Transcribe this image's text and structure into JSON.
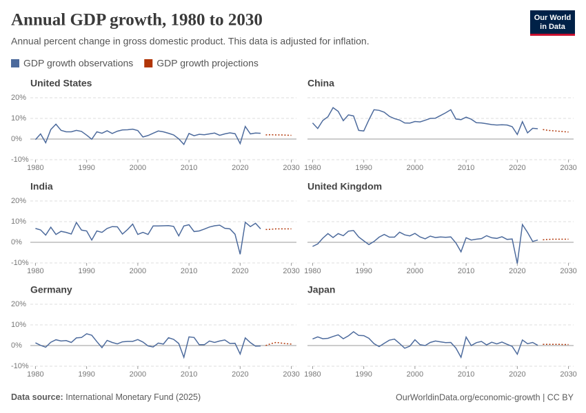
{
  "header": {
    "title": "Annual GDP growth, 1980 to 2030",
    "subtitle": "Annual percent change in gross domestic product. This data is adjusted for inflation.",
    "logo": [
      "Our World",
      "in Data"
    ]
  },
  "chart_data": [
    {
      "type": "line",
      "title": "United States",
      "x": [
        1980,
        1981,
        1982,
        1983,
        1984,
        1985,
        1986,
        1987,
        1988,
        1989,
        1990,
        1991,
        1992,
        1993,
        1994,
        1995,
        1996,
        1997,
        1998,
        1999,
        2000,
        2001,
        2002,
        2003,
        2004,
        2005,
        2006,
        2007,
        2008,
        2009,
        2010,
        2011,
        2012,
        2013,
        2014,
        2015,
        2016,
        2017,
        2018,
        2019,
        2020,
        2021,
        2022,
        2023,
        2024,
        2025,
        2026,
        2027,
        2028,
        2029,
        2030
      ],
      "xlim": [
        1979,
        2031
      ],
      "xticks": [
        1980,
        1990,
        2000,
        2010,
        2020,
        2030
      ],
      "ylim": [
        -10,
        20
      ],
      "yticks": [
        {
          "value": -10,
          "label": "-10%"
        },
        {
          "value": 0,
          "label": "0%"
        },
        {
          "value": 10,
          "label": "10%"
        },
        {
          "value": 20,
          "label": "20%"
        }
      ],
      "grid": true,
      "series": [
        {
          "name": "GDP growth observations",
          "color": "#4c6a9c",
          "values": [
            -0.3,
            2.5,
            -1.8,
            4.6,
            7.2,
            4.2,
            3.5,
            3.5,
            4.2,
            3.7,
            1.9,
            -0.1,
            3.5,
            2.8,
            4.0,
            2.7,
            3.8,
            4.4,
            4.5,
            4.8,
            4.1,
            1.0,
            1.7,
            2.8,
            3.9,
            3.5,
            2.8,
            2.0,
            0.1,
            -2.6,
            2.7,
            1.6,
            2.3,
            2.1,
            2.5,
            2.9,
            1.8,
            2.5,
            3.0,
            2.6,
            -2.2,
            6.1,
            2.5,
            2.9,
            2.8,
            null,
            null,
            null,
            null,
            null,
            null
          ]
        },
        {
          "name": "GDP growth projections",
          "color": "#b13507",
          "dashed": true,
          "values": [
            null,
            null,
            null,
            null,
            null,
            null,
            null,
            null,
            null,
            null,
            null,
            null,
            null,
            null,
            null,
            null,
            null,
            null,
            null,
            null,
            null,
            null,
            null,
            null,
            null,
            null,
            null,
            null,
            null,
            null,
            null,
            null,
            null,
            null,
            null,
            null,
            null,
            null,
            null,
            null,
            null,
            null,
            null,
            null,
            null,
            2.0,
            2.1,
            2.0,
            2.0,
            1.9,
            1.8
          ]
        }
      ]
    },
    {
      "type": "line",
      "title": "China",
      "x": [
        1980,
        1981,
        1982,
        1983,
        1984,
        1985,
        1986,
        1987,
        1988,
        1989,
        1990,
        1991,
        1992,
        1993,
        1994,
        1995,
        1996,
        1997,
        1998,
        1999,
        2000,
        2001,
        2002,
        2003,
        2004,
        2005,
        2006,
        2007,
        2008,
        2009,
        2010,
        2011,
        2012,
        2013,
        2014,
        2015,
        2016,
        2017,
        2018,
        2019,
        2020,
        2021,
        2022,
        2023,
        2024,
        2025,
        2026,
        2027,
        2028,
        2029,
        2030
      ],
      "xlim": [
        1979,
        2031
      ],
      "xticks": [
        1980,
        1990,
        2000,
        2010,
        2020,
        2030
      ],
      "ylim": [
        -10,
        20
      ],
      "yticks": [
        -10,
        0,
        10,
        20
      ],
      "grid": true,
      "series": [
        {
          "color": "#4c6a9c",
          "values": [
            7.8,
            5.1,
            9.0,
            10.8,
            15.2,
            13.4,
            8.9,
            11.7,
            11.2,
            4.2,
            3.9,
            9.3,
            14.2,
            13.9,
            13.0,
            11.0,
            9.9,
            9.2,
            7.8,
            7.7,
            8.5,
            8.3,
            9.1,
            10.0,
            10.1,
            11.4,
            12.7,
            14.2,
            9.7,
            9.4,
            10.6,
            9.6,
            7.9,
            7.8,
            7.4,
            7.0,
            6.8,
            6.9,
            6.8,
            6.0,
            2.2,
            8.4,
            3.0,
            5.2,
            5.0,
            null,
            null,
            null,
            null,
            null,
            null
          ]
        },
        {
          "color": "#b13507",
          "dashed": true,
          "values": [
            null,
            null,
            null,
            null,
            null,
            null,
            null,
            null,
            null,
            null,
            null,
            null,
            null,
            null,
            null,
            null,
            null,
            null,
            null,
            null,
            null,
            null,
            null,
            null,
            null,
            null,
            null,
            null,
            null,
            null,
            null,
            null,
            null,
            null,
            null,
            null,
            null,
            null,
            null,
            null,
            null,
            null,
            null,
            null,
            null,
            4.6,
            4.2,
            4.0,
            3.8,
            3.6,
            3.4
          ]
        }
      ]
    },
    {
      "type": "line",
      "title": "India",
      "x": [
        1980,
        1981,
        1982,
        1983,
        1984,
        1985,
        1986,
        1987,
        1988,
        1989,
        1990,
        1991,
        1992,
        1993,
        1994,
        1995,
        1996,
        1997,
        1998,
        1999,
        2000,
        2001,
        2002,
        2003,
        2004,
        2005,
        2006,
        2007,
        2008,
        2009,
        2010,
        2011,
        2012,
        2013,
        2014,
        2015,
        2016,
        2017,
        2018,
        2019,
        2020,
        2021,
        2022,
        2023,
        2024,
        2025,
        2026,
        2027,
        2028,
        2029,
        2030
      ],
      "xlim": [
        1979,
        2031
      ],
      "xticks": [
        1980,
        1990,
        2000,
        2010,
        2020,
        2030
      ],
      "ylim": [
        -10,
        20
      ],
      "yticks": [
        {
          "value": -10,
          "label": "-10%"
        },
        {
          "value": 0,
          "label": "0%"
        },
        {
          "value": 10,
          "label": "10%"
        },
        {
          "value": 20,
          "label": "20%"
        }
      ],
      "grid": true,
      "series": [
        {
          "color": "#4c6a9c",
          "values": [
            6.7,
            6.0,
            3.5,
            7.3,
            3.8,
            5.3,
            4.8,
            4.0,
            9.6,
            5.9,
            5.5,
            1.1,
            5.5,
            4.8,
            6.7,
            7.6,
            7.5,
            4.0,
            6.2,
            8.8,
            3.8,
            4.8,
            3.8,
            7.9,
            7.9,
            8.0,
            8.1,
            7.7,
            3.1,
            7.9,
            8.5,
            5.2,
            5.5,
            6.4,
            7.4,
            8.0,
            8.3,
            6.8,
            6.5,
            3.9,
            -5.8,
            9.7,
            7.6,
            9.2,
            6.5,
            null,
            null,
            null,
            null,
            null,
            null
          ]
        },
        {
          "color": "#b13507",
          "dashed": true,
          "values": [
            null,
            null,
            null,
            null,
            null,
            null,
            null,
            null,
            null,
            null,
            null,
            null,
            null,
            null,
            null,
            null,
            null,
            null,
            null,
            null,
            null,
            null,
            null,
            null,
            null,
            null,
            null,
            null,
            null,
            null,
            null,
            null,
            null,
            null,
            null,
            null,
            null,
            null,
            null,
            null,
            null,
            null,
            null,
            null,
            null,
            6.2,
            6.3,
            6.5,
            6.5,
            6.5,
            6.5
          ]
        }
      ]
    },
    {
      "type": "line",
      "title": "United Kingdom",
      "x": [
        1980,
        1981,
        1982,
        1983,
        1984,
        1985,
        1986,
        1987,
        1988,
        1989,
        1990,
        1991,
        1992,
        1993,
        1994,
        1995,
        1996,
        1997,
        1998,
        1999,
        2000,
        2001,
        2002,
        2003,
        2004,
        2005,
        2006,
        2007,
        2008,
        2009,
        2010,
        2011,
        2012,
        2013,
        2014,
        2015,
        2016,
        2017,
        2018,
        2019,
        2020,
        2021,
        2022,
        2023,
        2024,
        2025,
        2026,
        2027,
        2028,
        2029,
        2030
      ],
      "xlim": [
        1979,
        2031
      ],
      "xticks": [
        1980,
        1990,
        2000,
        2010,
        2020,
        2030
      ],
      "ylim": [
        -10,
        20
      ],
      "yticks": [
        -10,
        0,
        10,
        20
      ],
      "grid": true,
      "series": [
        {
          "color": "#4c6a9c",
          "values": [
            -2.0,
            -0.8,
            2.0,
            4.2,
            2.3,
            4.2,
            3.2,
            5.4,
            5.7,
            2.6,
            0.7,
            -1.1,
            0.4,
            2.5,
            3.8,
            2.5,
            2.5,
            4.9,
            3.6,
            3.1,
            4.3,
            2.6,
            1.7,
            3.0,
            2.3,
            2.6,
            2.4,
            2.6,
            -0.3,
            -4.6,
            2.2,
            1.1,
            1.5,
            1.8,
            3.2,
            2.2,
            1.9,
            2.7,
            1.4,
            1.6,
            -10.3,
            8.6,
            4.8,
            0.4,
            1.1,
            null,
            null,
            null,
            null,
            null,
            null
          ]
        },
        {
          "color": "#b13507",
          "dashed": true,
          "values": [
            null,
            null,
            null,
            null,
            null,
            null,
            null,
            null,
            null,
            null,
            null,
            null,
            null,
            null,
            null,
            null,
            null,
            null,
            null,
            null,
            null,
            null,
            null,
            null,
            null,
            null,
            null,
            null,
            null,
            null,
            null,
            null,
            null,
            null,
            null,
            null,
            null,
            null,
            null,
            null,
            null,
            null,
            null,
            null,
            null,
            1.2,
            1.4,
            1.5,
            1.5,
            1.5,
            1.5
          ]
        }
      ]
    },
    {
      "type": "line",
      "title": "Germany",
      "x": [
        1980,
        1981,
        1982,
        1983,
        1984,
        1985,
        1986,
        1987,
        1988,
        1989,
        1990,
        1991,
        1992,
        1993,
        1994,
        1995,
        1996,
        1997,
        1998,
        1999,
        2000,
        2001,
        2002,
        2003,
        2004,
        2005,
        2006,
        2007,
        2008,
        2009,
        2010,
        2011,
        2012,
        2013,
        2014,
        2015,
        2016,
        2017,
        2018,
        2019,
        2020,
        2021,
        2022,
        2023,
        2024,
        2025,
        2026,
        2027,
        2028,
        2029,
        2030
      ],
      "xlim": [
        1979,
        2031
      ],
      "xticks": [
        1980,
        1990,
        2000,
        2010,
        2020,
        2030
      ],
      "ylim": [
        -10,
        20
      ],
      "yticks": [
        {
          "value": -10,
          "label": "-10%"
        },
        {
          "value": 0,
          "label": "0%"
        },
        {
          "value": 10,
          "label": "10%"
        },
        {
          "value": 20,
          "label": "20%"
        }
      ],
      "grid": true,
      "series": [
        {
          "color": "#4c6a9c",
          "values": [
            1.3,
            0.1,
            -0.8,
            1.6,
            2.8,
            2.2,
            2.4,
            1.5,
            3.7,
            3.9,
            5.7,
            5.0,
            1.9,
            -1.0,
            2.5,
            1.5,
            0.8,
            1.8,
            2.0,
            2.0,
            2.9,
            1.7,
            -0.2,
            -0.7,
            1.2,
            0.7,
            3.8,
            3.0,
            1.0,
            -5.7,
            4.2,
            3.9,
            0.4,
            0.4,
            2.2,
            1.5,
            2.2,
            2.7,
            1.0,
            1.1,
            -4.1,
            3.7,
            1.4,
            -0.3,
            -0.2,
            null,
            null,
            null,
            null,
            null,
            null
          ]
        },
        {
          "color": "#b13507",
          "dashed": true,
          "values": [
            null,
            null,
            null,
            null,
            null,
            null,
            null,
            null,
            null,
            null,
            null,
            null,
            null,
            null,
            null,
            null,
            null,
            null,
            null,
            null,
            null,
            null,
            null,
            null,
            null,
            null,
            null,
            null,
            null,
            null,
            null,
            null,
            null,
            null,
            null,
            null,
            null,
            null,
            null,
            null,
            null,
            null,
            null,
            null,
            null,
            0.0,
            0.9,
            1.5,
            1.2,
            0.9,
            0.7
          ]
        }
      ]
    },
    {
      "type": "line",
      "title": "Japan",
      "x": [
        1980,
        1981,
        1982,
        1983,
        1984,
        1985,
        1986,
        1987,
        1988,
        1989,
        1990,
        1991,
        1992,
        1993,
        1994,
        1995,
        1996,
        1997,
        1998,
        1999,
        2000,
        2001,
        2002,
        2003,
        2004,
        2005,
        2006,
        2007,
        2008,
        2009,
        2010,
        2011,
        2012,
        2013,
        2014,
        2015,
        2016,
        2017,
        2018,
        2019,
        2020,
        2021,
        2022,
        2023,
        2024,
        2025,
        2026,
        2027,
        2028,
        2029,
        2030
      ],
      "xlim": [
        1979,
        2031
      ],
      "xticks": [
        1980,
        1990,
        2000,
        2010,
        2020,
        2030
      ],
      "ylim": [
        -10,
        20
      ],
      "yticks": [
        -10,
        0,
        10,
        20
      ],
      "grid": true,
      "series": [
        {
          "color": "#4c6a9c",
          "values": [
            3.2,
            4.2,
            3.3,
            3.5,
            4.4,
            5.2,
            3.3,
            4.7,
            6.7,
            4.9,
            4.8,
            3.5,
            0.9,
            -0.5,
            1.1,
            2.6,
            3.1,
            1.0,
            -1.3,
            -0.3,
            2.8,
            0.4,
            0.0,
            1.5,
            2.2,
            1.8,
            1.4,
            1.5,
            -1.2,
            -5.7,
            4.1,
            0.0,
            1.4,
            2.0,
            0.3,
            1.6,
            0.8,
            1.7,
            0.6,
            -0.4,
            -4.2,
            2.7,
            0.9,
            1.5,
            0.1,
            null,
            null,
            null,
            null,
            null,
            null
          ]
        },
        {
          "color": "#b13507",
          "dashed": true,
          "values": [
            null,
            null,
            null,
            null,
            null,
            null,
            null,
            null,
            null,
            null,
            null,
            null,
            null,
            null,
            null,
            null,
            null,
            null,
            null,
            null,
            null,
            null,
            null,
            null,
            null,
            null,
            null,
            null,
            null,
            null,
            null,
            null,
            null,
            null,
            null,
            null,
            null,
            null,
            null,
            null,
            null,
            null,
            null,
            null,
            null,
            0.6,
            0.6,
            0.6,
            0.6,
            0.5,
            0.5
          ]
        }
      ]
    }
  ],
  "footer": {
    "source_label": "Data source:",
    "source": "International Monetary Fund (2025)",
    "url": "OurWorldinData.org/economic-growth | CC BY"
  }
}
